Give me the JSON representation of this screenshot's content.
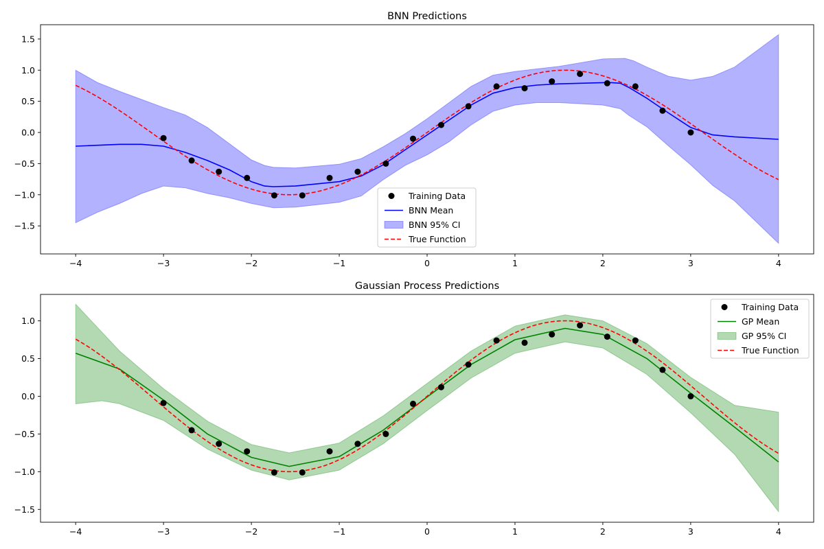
{
  "chart_data": [
    {
      "type": "line",
      "title": "BNN Predictions",
      "xlabel": "",
      "ylabel": "",
      "xlim": [
        -4.4,
        4.4
      ],
      "ylim": [
        -1.95,
        1.73
      ],
      "xticks": [
        -4,
        -3,
        -2,
        -1,
        0,
        1,
        2,
        3,
        4
      ],
      "yticks": [
        -1.5,
        -1.0,
        -0.5,
        0.0,
        0.5,
        1.0,
        1.5
      ],
      "grid": false,
      "legend_position": "lower center",
      "legend": [
        "Training Data",
        "BNN Mean",
        "BNN 95% CI",
        "True Function"
      ],
      "training_data": {
        "name": "Training Data",
        "x": [
          -3.0,
          -2.68,
          -2.37,
          -2.05,
          -1.74,
          -1.42,
          -1.11,
          -0.79,
          -0.47,
          -0.16,
          0.16,
          0.47,
          0.79,
          1.11,
          1.42,
          1.74,
          2.05,
          2.37,
          2.68,
          3.0
        ],
        "y": [
          -0.09,
          -0.45,
          -0.63,
          -0.73,
          -1.01,
          -1.01,
          -0.73,
          -0.63,
          -0.5,
          -0.1,
          0.12,
          0.42,
          0.74,
          0.71,
          0.82,
          0.94,
          0.79,
          0.74,
          0.35,
          0.0
        ]
      },
      "mean": {
        "name": "BNN Mean",
        "x": [
          -4.0,
          -3.5,
          -3.25,
          -3.0,
          -2.75,
          -2.5,
          -2.25,
          -2.0,
          -1.85,
          -1.75,
          -1.5,
          -1.0,
          -0.75,
          -0.5,
          -0.25,
          0.0,
          0.25,
          0.5,
          0.75,
          1.0,
          1.25,
          1.5,
          1.75,
          2.0,
          2.1,
          2.2,
          2.3,
          2.5,
          2.75,
          3.0,
          3.25,
          3.5,
          4.0
        ],
        "y": [
          -0.22,
          -0.19,
          -0.19,
          -0.22,
          -0.32,
          -0.45,
          -0.6,
          -0.79,
          -0.86,
          -0.87,
          -0.86,
          -0.79,
          -0.7,
          -0.52,
          -0.28,
          -0.04,
          0.2,
          0.44,
          0.63,
          0.72,
          0.76,
          0.78,
          0.79,
          0.8,
          0.8,
          0.79,
          0.72,
          0.55,
          0.31,
          0.08,
          -0.04,
          -0.07,
          -0.11
        ]
      },
      "ci_upper": {
        "x": [
          -4.0,
          -3.75,
          -3.5,
          -3.25,
          -3.0,
          -2.75,
          -2.5,
          -2.25,
          -2.0,
          -1.85,
          -1.75,
          -1.5,
          -1.0,
          -0.75,
          -0.5,
          -0.25,
          0.0,
          0.25,
          0.5,
          0.75,
          1.0,
          1.25,
          1.5,
          1.75,
          2.0,
          2.25,
          2.35,
          2.5,
          2.75,
          3.0,
          3.25,
          3.5,
          4.0
        ],
        "y": [
          1.0,
          0.8,
          0.66,
          0.53,
          0.4,
          0.28,
          0.08,
          -0.18,
          -0.44,
          -0.53,
          -0.56,
          -0.57,
          -0.51,
          -0.42,
          -0.23,
          -0.02,
          0.22,
          0.48,
          0.74,
          0.92,
          0.98,
          1.02,
          1.06,
          1.12,
          1.18,
          1.19,
          1.15,
          1.05,
          0.9,
          0.84,
          0.9,
          1.05,
          1.57
        ]
      },
      "ci_lower": {
        "x": [
          -4.0,
          -3.75,
          -3.5,
          -3.25,
          -3.0,
          -2.75,
          -2.5,
          -2.25,
          -2.0,
          -1.75,
          -1.5,
          -1.0,
          -0.75,
          -0.5,
          -0.25,
          0.0,
          0.25,
          0.5,
          0.75,
          1.0,
          1.25,
          1.5,
          1.75,
          2.0,
          2.2,
          2.3,
          2.5,
          2.75,
          3.0,
          3.25,
          3.5,
          4.0
        ],
        "y": [
          -1.45,
          -1.28,
          -1.14,
          -0.98,
          -0.86,
          -0.89,
          -0.98,
          -1.05,
          -1.14,
          -1.21,
          -1.2,
          -1.12,
          -1.02,
          -0.76,
          -0.53,
          -0.36,
          -0.15,
          0.12,
          0.34,
          0.44,
          0.48,
          0.48,
          0.46,
          0.44,
          0.38,
          0.27,
          0.09,
          -0.22,
          -0.52,
          -0.85,
          -1.1,
          -1.78
        ]
      },
      "true_function": {
        "name": "True Function",
        "fn": "sin",
        "x_range": [
          -4,
          4
        ]
      },
      "colors": {
        "mean": "#0000ff",
        "band": "#0000ff",
        "true": "#ff0000",
        "points": "#000000"
      }
    },
    {
      "type": "line",
      "title": "Gaussian Process Predictions",
      "xlabel": "",
      "ylabel": "",
      "xlim": [
        -4.4,
        4.4
      ],
      "ylim": [
        -1.67,
        1.35
      ],
      "xticks": [
        -4,
        -3,
        -2,
        -1,
        0,
        1,
        2,
        3,
        4
      ],
      "yticks": [
        -1.5,
        -1.0,
        -0.5,
        0.0,
        0.5,
        1.0
      ],
      "grid": false,
      "legend_position": "upper right",
      "legend": [
        "Training Data",
        "GP Mean",
        "GP 95% CI",
        "True Function"
      ],
      "training_data": {
        "name": "Training Data",
        "x": [
          -3.0,
          -2.68,
          -2.37,
          -2.05,
          -1.74,
          -1.42,
          -1.11,
          -0.79,
          -0.47,
          -0.16,
          0.16,
          0.47,
          0.79,
          1.11,
          1.42,
          1.74,
          2.05,
          2.37,
          2.68,
          3.0
        ],
        "y": [
          -0.09,
          -0.45,
          -0.63,
          -0.73,
          -1.01,
          -1.01,
          -0.73,
          -0.63,
          -0.5,
          -0.1,
          0.12,
          0.42,
          0.74,
          0.71,
          0.82,
          0.94,
          0.79,
          0.74,
          0.35,
          0.0
        ]
      },
      "mean": {
        "name": "GP Mean",
        "x": [
          -4.0,
          -3.5,
          -3.0,
          -2.5,
          -2.0,
          -1.57,
          -1.0,
          -0.5,
          0.0,
          0.5,
          1.0,
          1.57,
          2.0,
          2.5,
          3.0,
          3.5,
          4.0
        ],
        "y": [
          0.57,
          0.36,
          -0.05,
          -0.5,
          -0.81,
          -0.93,
          -0.8,
          -0.45,
          -0.01,
          0.42,
          0.75,
          0.9,
          0.82,
          0.5,
          0.04,
          -0.41,
          -0.87
        ]
      },
      "ci_upper": {
        "x": [
          -4.0,
          -3.5,
          -3.0,
          -2.5,
          -2.0,
          -1.57,
          -1.0,
          -0.5,
          0.0,
          0.5,
          1.0,
          1.57,
          2.0,
          2.5,
          3.0,
          3.5,
          4.0
        ],
        "y": [
          1.22,
          0.6,
          0.1,
          -0.33,
          -0.64,
          -0.75,
          -0.62,
          -0.26,
          0.17,
          0.6,
          0.93,
          1.08,
          1.0,
          0.7,
          0.25,
          -0.12,
          -0.21
        ]
      },
      "ci_lower": {
        "x": [
          -4.0,
          -3.7,
          -3.5,
          -3.0,
          -2.5,
          -2.0,
          -1.57,
          -1.0,
          -0.5,
          0.0,
          0.5,
          1.0,
          1.57,
          2.0,
          2.5,
          3.0,
          3.5,
          4.0
        ],
        "y": [
          -0.1,
          -0.06,
          -0.1,
          -0.32,
          -0.7,
          -0.98,
          -1.11,
          -0.98,
          -0.63,
          -0.19,
          0.24,
          0.57,
          0.72,
          0.64,
          0.29,
          -0.22,
          -0.77,
          -1.53
        ]
      },
      "true_function": {
        "name": "True Function",
        "fn": "sin",
        "x_range": [
          -4,
          4
        ]
      },
      "colors": {
        "mean": "#008000",
        "band": "#008000",
        "true": "#ff0000",
        "points": "#000000"
      }
    }
  ]
}
